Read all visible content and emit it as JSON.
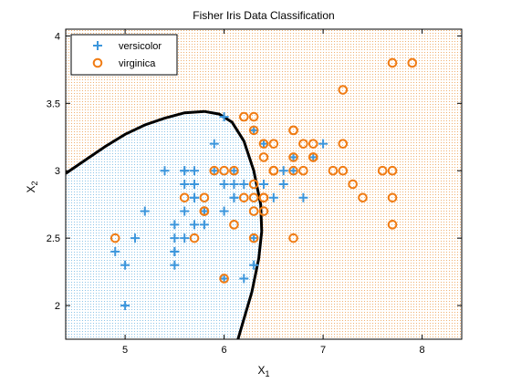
{
  "chart_data": {
    "type": "scatter",
    "title": "Fisher Iris Data Classification",
    "xlabel": "X",
    "xlabel_sub": "1",
    "ylabel": "X",
    "ylabel_sub": "2",
    "xlim": [
      4.4,
      8.4
    ],
    "ylim": [
      1.75,
      4.05
    ],
    "xticks": [
      5,
      6,
      7,
      8
    ],
    "xtick_labels": [
      "5",
      "6",
      "7",
      "8"
    ],
    "yticks": [
      2,
      2.5,
      3,
      3.5,
      4
    ],
    "ytick_labels": [
      "2",
      "2.5",
      "3",
      "3.5",
      "4"
    ],
    "grid": false,
    "legend_position": "top-left",
    "region_colors": {
      "versicolor": "#bfe0f2",
      "virginica": "#f5c99a"
    },
    "boundary": {
      "color": "#000000",
      "points": [
        [
          4.4,
          2.98
        ],
        [
          4.6,
          3.08
        ],
        [
          4.8,
          3.18
        ],
        [
          5.0,
          3.27
        ],
        [
          5.2,
          3.34
        ],
        [
          5.4,
          3.39
        ],
        [
          5.6,
          3.43
        ],
        [
          5.8,
          3.44
        ],
        [
          5.95,
          3.42
        ],
        [
          6.08,
          3.36
        ],
        [
          6.2,
          3.22
        ],
        [
          6.3,
          3.0
        ],
        [
          6.37,
          2.75
        ],
        [
          6.38,
          2.55
        ],
        [
          6.35,
          2.35
        ],
        [
          6.28,
          2.1
        ],
        [
          6.2,
          1.9
        ],
        [
          6.14,
          1.75
        ]
      ]
    },
    "series": [
      {
        "name": "versicolor",
        "marker": "plus",
        "color": "#3c96dc",
        "points": [
          [
            7.0,
            3.2
          ],
          [
            6.4,
            3.2
          ],
          [
            6.9,
            3.1
          ],
          [
            5.5,
            2.3
          ],
          [
            6.5,
            2.8
          ],
          [
            5.7,
            2.8
          ],
          [
            6.3,
            3.3
          ],
          [
            4.9,
            2.4
          ],
          [
            6.6,
            2.9
          ],
          [
            5.2,
            2.7
          ],
          [
            5.0,
            2.0
          ],
          [
            5.9,
            3.0
          ],
          [
            6.0,
            2.2
          ],
          [
            6.1,
            2.9
          ],
          [
            5.6,
            2.9
          ],
          [
            6.7,
            3.1
          ],
          [
            5.6,
            3.0
          ],
          [
            5.8,
            2.7
          ],
          [
            6.2,
            2.2
          ],
          [
            5.6,
            2.5
          ],
          [
            5.9,
            3.2
          ],
          [
            6.1,
            2.8
          ],
          [
            6.3,
            2.5
          ],
          [
            6.1,
            2.8
          ],
          [
            6.4,
            2.9
          ],
          [
            6.6,
            3.0
          ],
          [
            6.8,
            2.8
          ],
          [
            6.7,
            3.0
          ],
          [
            6.0,
            2.9
          ],
          [
            5.7,
            2.6
          ],
          [
            5.5,
            2.4
          ],
          [
            5.5,
            2.4
          ],
          [
            5.8,
            2.7
          ],
          [
            6.0,
            2.7
          ],
          [
            5.4,
            3.0
          ],
          [
            6.0,
            3.4
          ],
          [
            6.7,
            3.1
          ],
          [
            6.3,
            2.3
          ],
          [
            5.6,
            3.0
          ],
          [
            5.5,
            2.5
          ],
          [
            5.5,
            2.6
          ],
          [
            6.1,
            3.0
          ],
          [
            5.8,
            2.6
          ],
          [
            5.0,
            2.3
          ],
          [
            5.6,
            2.7
          ],
          [
            5.7,
            3.0
          ],
          [
            5.7,
            2.9
          ],
          [
            6.2,
            2.9
          ],
          [
            5.1,
            2.5
          ],
          [
            5.7,
            2.8
          ]
        ]
      },
      {
        "name": "virginica",
        "marker": "circle",
        "color": "#f07c14",
        "points": [
          [
            6.3,
            3.3
          ],
          [
            5.8,
            2.7
          ],
          [
            7.1,
            3.0
          ],
          [
            6.3,
            2.9
          ],
          [
            6.5,
            3.0
          ],
          [
            7.6,
            3.0
          ],
          [
            4.9,
            2.5
          ],
          [
            7.3,
            2.9
          ],
          [
            6.7,
            2.5
          ],
          [
            7.2,
            3.6
          ],
          [
            6.5,
            3.2
          ],
          [
            6.4,
            2.7
          ],
          [
            6.8,
            3.0
          ],
          [
            5.7,
            2.5
          ],
          [
            5.8,
            2.8
          ],
          [
            6.4,
            3.2
          ],
          [
            6.5,
            3.0
          ],
          [
            7.7,
            3.8
          ],
          [
            7.7,
            2.6
          ],
          [
            6.0,
            2.2
          ],
          [
            6.9,
            3.2
          ],
          [
            5.6,
            2.8
          ],
          [
            7.7,
            2.8
          ],
          [
            6.3,
            2.7
          ],
          [
            6.7,
            3.3
          ],
          [
            7.2,
            3.2
          ],
          [
            6.2,
            2.8
          ],
          [
            6.1,
            3.0
          ],
          [
            6.4,
            2.8
          ],
          [
            7.2,
            3.0
          ],
          [
            7.4,
            2.8
          ],
          [
            7.9,
            3.8
          ],
          [
            6.4,
            2.8
          ],
          [
            6.3,
            2.8
          ],
          [
            6.1,
            2.6
          ],
          [
            7.7,
            3.0
          ],
          [
            6.3,
            3.4
          ],
          [
            6.4,
            3.1
          ],
          [
            6.0,
            3.0
          ],
          [
            6.9,
            3.1
          ],
          [
            6.7,
            3.1
          ],
          [
            6.9,
            3.1
          ],
          [
            5.8,
            2.7
          ],
          [
            6.8,
            3.2
          ],
          [
            6.7,
            3.3
          ],
          [
            6.7,
            3.0
          ],
          [
            6.3,
            2.5
          ],
          [
            6.5,
            3.0
          ],
          [
            6.2,
            3.4
          ],
          [
            5.9,
            3.0
          ]
        ]
      }
    ]
  }
}
